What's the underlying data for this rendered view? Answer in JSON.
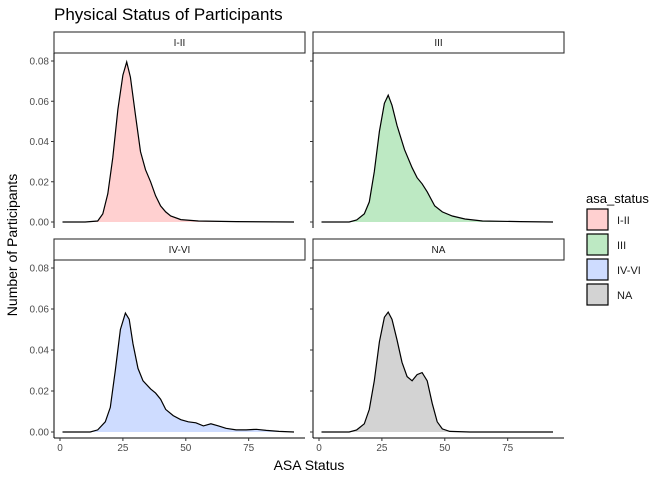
{
  "chart_data": {
    "type": "area",
    "subtype": "faceted density",
    "title": "Physical Status of Participants",
    "xlabel": "ASA Status",
    "ylabel": "Number of Participants",
    "xlim": [
      0,
      95
    ],
    "ylim": [
      0,
      0.08
    ],
    "x_ticks": [
      0,
      25,
      50,
      75
    ],
    "y_ticks": [
      0.0,
      0.02,
      0.04,
      0.06,
      0.08
    ],
    "y_tick_labels": [
      "0.00",
      "0.02",
      "0.04",
      "0.06",
      "0.08"
    ],
    "grid": false,
    "legend": {
      "title": "asa_status",
      "position": "right",
      "entries": [
        {
          "label": "I-II",
          "color": "#FFD0D0"
        },
        {
          "label": "III",
          "color": "#BDE9C3"
        },
        {
          "label": "IV-VI",
          "color": "#CEDCFF"
        },
        {
          "label": "NA",
          "color": "#D3D3D3"
        }
      ]
    },
    "panels": [
      {
        "label": "I-II",
        "color": "#FFD0D0",
        "points": [
          [
            1,
            0
          ],
          [
            10,
            0
          ],
          [
            15,
            0.0005
          ],
          [
            17,
            0.004
          ],
          [
            19,
            0.014
          ],
          [
            21,
            0.032
          ],
          [
            23,
            0.056
          ],
          [
            25,
            0.073
          ],
          [
            26.5,
            0.0795
          ],
          [
            28,
            0.072
          ],
          [
            30,
            0.053
          ],
          [
            32,
            0.035
          ],
          [
            34,
            0.026
          ],
          [
            36,
            0.02
          ],
          [
            38,
            0.013
          ],
          [
            40,
            0.008
          ],
          [
            42,
            0.005
          ],
          [
            44,
            0.003
          ],
          [
            48,
            0.0012
          ],
          [
            55,
            0.0005
          ],
          [
            70,
            0.0002
          ],
          [
            93,
            0
          ]
        ]
      },
      {
        "label": "III",
        "color": "#BDE9C3",
        "points": [
          [
            1,
            0
          ],
          [
            12,
            0
          ],
          [
            15,
            0.001
          ],
          [
            18,
            0.004
          ],
          [
            20,
            0.01
          ],
          [
            22,
            0.025
          ],
          [
            24,
            0.045
          ],
          [
            26,
            0.059
          ],
          [
            27.5,
            0.063
          ],
          [
            29,
            0.058
          ],
          [
            31,
            0.048
          ],
          [
            34,
            0.036
          ],
          [
            37,
            0.027
          ],
          [
            39,
            0.022
          ],
          [
            41,
            0.019
          ],
          [
            43,
            0.015
          ],
          [
            46,
            0.008
          ],
          [
            49,
            0.005
          ],
          [
            53,
            0.003
          ],
          [
            58,
            0.0015
          ],
          [
            65,
            0.0005
          ],
          [
            80,
            0.0002
          ],
          [
            93,
            0
          ]
        ]
      },
      {
        "label": "IV-VI",
        "color": "#CEDCFF",
        "points": [
          [
            1,
            0
          ],
          [
            12,
            0
          ],
          [
            15,
            0.001
          ],
          [
            18,
            0.005
          ],
          [
            20,
            0.012
          ],
          [
            22,
            0.03
          ],
          [
            24,
            0.05
          ],
          [
            26,
            0.058
          ],
          [
            27.5,
            0.055
          ],
          [
            29,
            0.043
          ],
          [
            31,
            0.031
          ],
          [
            33,
            0.025
          ],
          [
            36,
            0.021
          ],
          [
            38,
            0.019
          ],
          [
            40,
            0.016
          ],
          [
            42,
            0.011
          ],
          [
            45,
            0.008
          ],
          [
            48,
            0.006
          ],
          [
            51,
            0.005
          ],
          [
            54,
            0.0045
          ],
          [
            57,
            0.003
          ],
          [
            60,
            0.004
          ],
          [
            63,
            0.003
          ],
          [
            66,
            0.0018
          ],
          [
            70,
            0.001
          ],
          [
            74,
            0.001
          ],
          [
            78,
            0.0013
          ],
          [
            82,
            0.0008
          ],
          [
            87,
            0.0003
          ],
          [
            93,
            0
          ]
        ]
      },
      {
        "label": "NA",
        "color": "#D3D3D3",
        "points": [
          [
            1,
            0
          ],
          [
            12,
            0
          ],
          [
            15,
            0.001
          ],
          [
            18,
            0.004
          ],
          [
            20,
            0.011
          ],
          [
            22,
            0.025
          ],
          [
            24,
            0.044
          ],
          [
            26,
            0.056
          ],
          [
            27.5,
            0.0585
          ],
          [
            29,
            0.055
          ],
          [
            31,
            0.045
          ],
          [
            33,
            0.034
          ],
          [
            35,
            0.027
          ],
          [
            37,
            0.025
          ],
          [
            39,
            0.028
          ],
          [
            41,
            0.029
          ],
          [
            43,
            0.025
          ],
          [
            45,
            0.014
          ],
          [
            47,
            0.005
          ],
          [
            49,
            0.0015
          ],
          [
            52,
            0.0003
          ],
          [
            60,
            0
          ],
          [
            93,
            0
          ]
        ]
      }
    ]
  }
}
